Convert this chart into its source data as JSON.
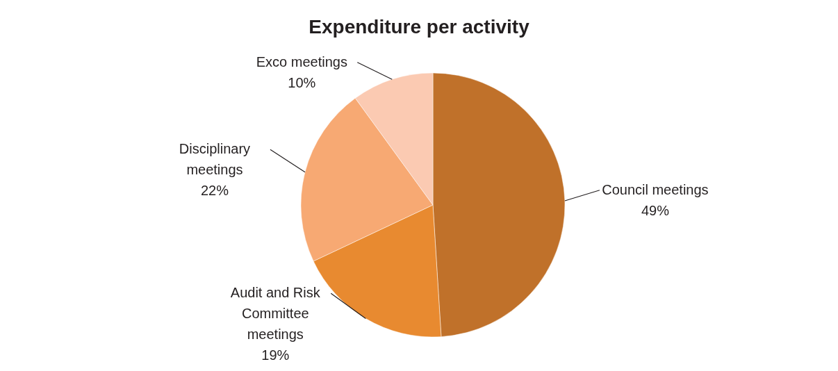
{
  "chart_data": {
    "type": "pie",
    "title": "Expenditure per activity",
    "categories": [
      "Council meetings",
      "Audit  and Risk Committee meetings",
      "Disciplinary meetings",
      "Exco meetings"
    ],
    "values": [
      49,
      19,
      22,
      10
    ],
    "value_labels": [
      "49%",
      "19%",
      "22%",
      "10%"
    ],
    "colors": [
      "#c0712a",
      "#e88a30",
      "#f7a973",
      "#fbcab2"
    ]
  }
}
